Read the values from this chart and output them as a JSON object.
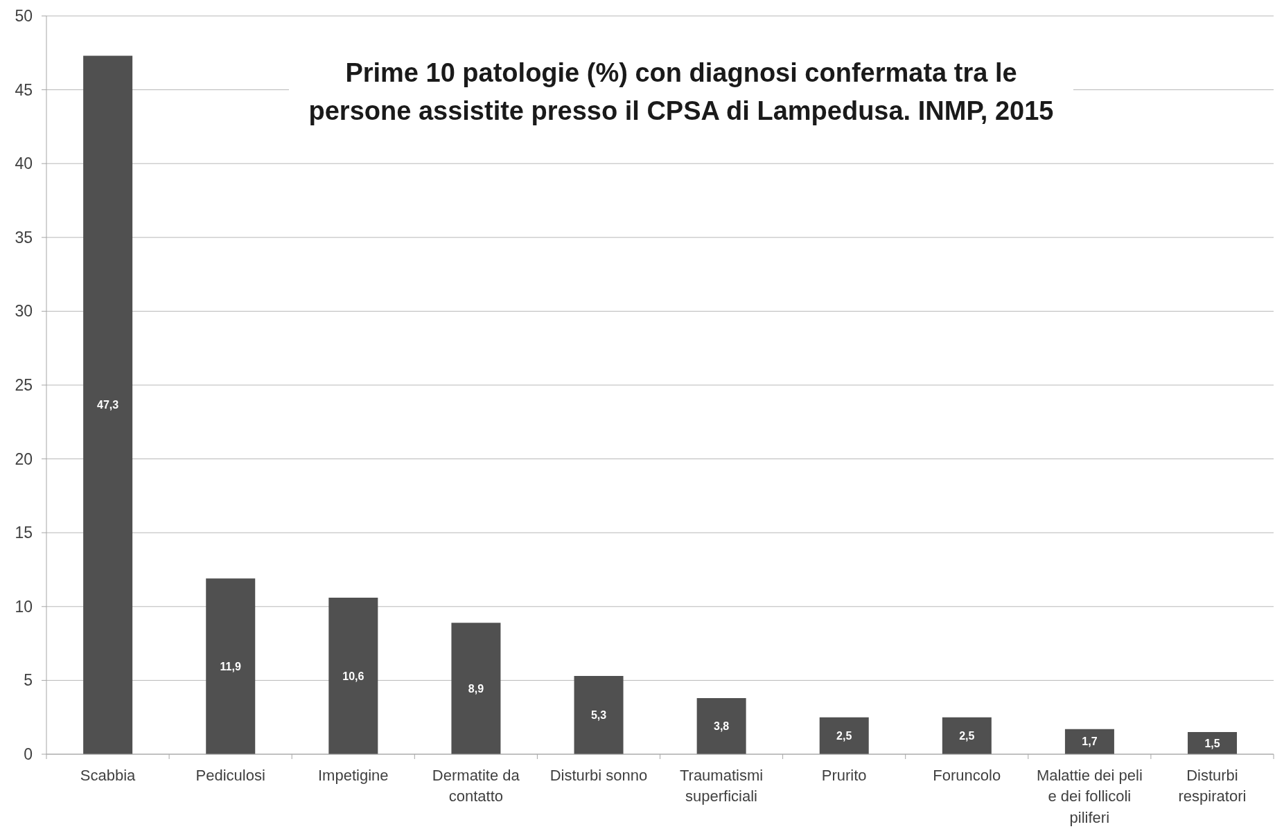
{
  "chart_data": {
    "type": "bar",
    "title": "Prime 10 patologie (%) con diagnosi confermata tra le persone assistite presso il CPSA di Lampedusa. INMP, 2015",
    "categories": [
      "Scabbia",
      "Pediculosi",
      "Impetigine",
      "Dermatite da contatto",
      "Disturbi sonno",
      "Traumatismi superficiali",
      "Prurito",
      "Foruncolo",
      "Malattie dei peli e dei follicoli piliferi",
      "Disturbi respiratori"
    ],
    "values": [
      47.3,
      11.9,
      10.6,
      8.9,
      5.3,
      3.8,
      2.5,
      2.5,
      1.7,
      1.5
    ],
    "value_labels": [
      "47,3",
      "11,9",
      "10,6",
      "8,9",
      "5,3",
      "3,8",
      "2,5",
      "2,5",
      "1,7",
      "1,5"
    ],
    "color": "#505050",
    "ylim": [
      0,
      50
    ],
    "yticks": [
      0,
      5,
      10,
      15,
      20,
      25,
      30,
      35,
      40,
      45,
      50
    ],
    "grid": "y"
  }
}
